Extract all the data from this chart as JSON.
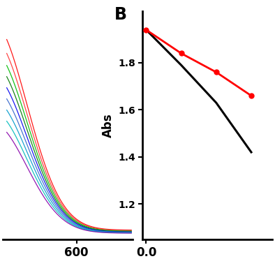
{
  "panel_A": {
    "curves": [
      {
        "color": "#ff0000",
        "peak_x": 430,
        "peak_y": 2.1,
        "tail_y": 0.04,
        "sigma_r": 70
      },
      {
        "color": "#ff3333",
        "peak_x": 430,
        "peak_y": 1.95,
        "tail_y": 0.035,
        "sigma_r": 70
      },
      {
        "color": "#00bb00",
        "peak_x": 430,
        "peak_y": 1.82,
        "tail_y": 0.03,
        "sigma_r": 70
      },
      {
        "color": "#007700",
        "peak_x": 430,
        "peak_y": 1.7,
        "tail_y": 0.025,
        "sigma_r": 70
      },
      {
        "color": "#0000ee",
        "peak_x": 430,
        "peak_y": 1.58,
        "tail_y": 0.022,
        "sigma_r": 70
      },
      {
        "color": "#3366cc",
        "peak_x": 430,
        "peak_y": 1.46,
        "tail_y": 0.018,
        "sigma_r": 70
      },
      {
        "color": "#0099cc",
        "peak_x": 430,
        "peak_y": 1.34,
        "tail_y": 0.015,
        "sigma_r": 70
      },
      {
        "color": "#00bbbb",
        "peak_x": 430,
        "peak_y": 1.22,
        "tail_y": 0.012,
        "sigma_r": 70
      },
      {
        "color": "#8800aa",
        "peak_x": 430,
        "peak_y": 1.1,
        "tail_y": 0.01,
        "sigma_r": 70
      }
    ],
    "x_plot_start": 460,
    "x_plot_end": 710,
    "xlim": [
      452,
      712
    ],
    "ylim": [
      -0.05,
      2.2
    ],
    "xtick": 600
  },
  "panel_B": {
    "label": "B",
    "black_line": {
      "x": [
        0.0,
        0.5,
        1.0,
        1.5
      ],
      "y": [
        1.94,
        1.79,
        1.63,
        1.42
      ]
    },
    "red_line": {
      "x": [
        0.0,
        0.5,
        1.0,
        1.5
      ],
      "y": [
        1.94,
        1.84,
        1.76,
        1.66
      ]
    },
    "ylabel": "Abs",
    "yticks": [
      1.2,
      1.4,
      1.6,
      1.8
    ],
    "ylim": [
      1.05,
      2.02
    ],
    "xlim": [
      -0.05,
      1.8
    ],
    "xtick_val": 0.0
  },
  "background_color": "#ffffff"
}
